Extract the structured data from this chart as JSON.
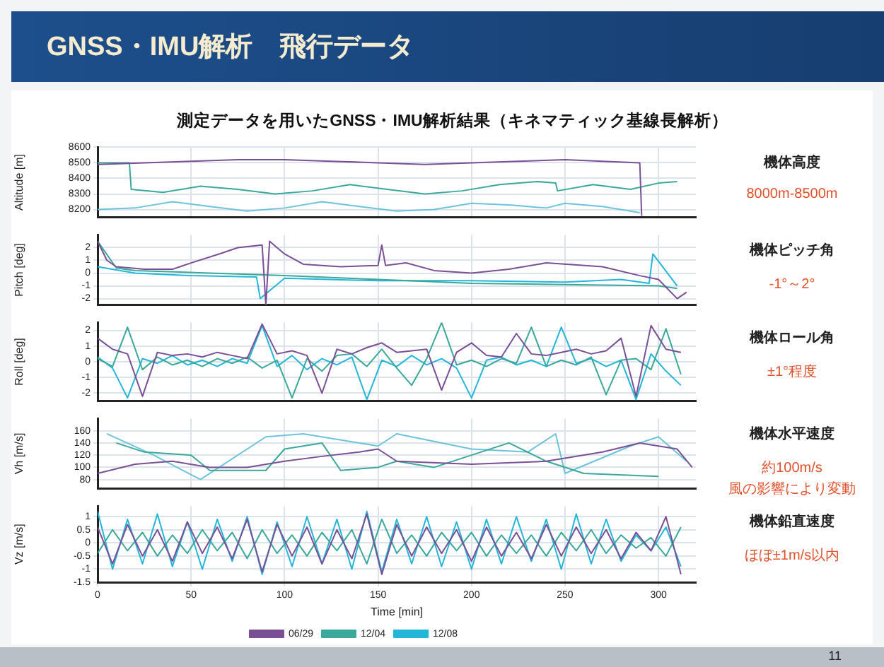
{
  "chart_data": [
    {
      "type": "line",
      "title": "GNSS・IMU解析　飛行データ",
      "subtitle": "測定データを用いたGNSS・IMU解析結果（キネマティック基線長解析）",
      "ylabel": "Altitude [m]",
      "xlim": [
        0,
        320
      ],
      "xticks": [
        0,
        50,
        100,
        150,
        200,
        250,
        300
      ],
      "ylim": [
        8150,
        8600
      ],
      "yticks": [
        8200,
        8300,
        8400,
        8500,
        8600
      ],
      "tick_labels": "y",
      "grid": true,
      "annotations": [
        "機体高度",
        "8000m-8500m"
      ],
      "series": [
        {
          "color": "#7a4f96",
          "x": [
            0,
            25,
            50,
            75,
            100,
            125,
            150,
            175,
            200,
            225,
            250,
            270,
            290,
            291
          ],
          "values": [
            8490,
            8500,
            8510,
            8520,
            8520,
            8510,
            8500,
            8490,
            8500,
            8510,
            8520,
            8510,
            8500,
            8160
          ]
        },
        {
          "color": "#3aa89a",
          "x": [
            0,
            17,
            18,
            35,
            55,
            75,
            95,
            115,
            135,
            155,
            175,
            195,
            215,
            235,
            245,
            246,
            265,
            285,
            300,
            310
          ],
          "values": [
            8500,
            8500,
            8330,
            8310,
            8350,
            8330,
            8300,
            8320,
            8360,
            8330,
            8300,
            8320,
            8360,
            8380,
            8370,
            8320,
            8360,
            8330,
            8370,
            8380
          ]
        },
        {
          "color": "#6cc3dc",
          "x": [
            0,
            20,
            40,
            60,
            80,
            100,
            120,
            140,
            160,
            180,
            200,
            220,
            240,
            250,
            270,
            290
          ],
          "values": [
            8200,
            8210,
            8250,
            8220,
            8190,
            8210,
            8250,
            8220,
            8190,
            8200,
            8240,
            8230,
            8210,
            8240,
            8220,
            8180
          ]
        }
      ]
    },
    {
      "type": "line",
      "ylabel": "Pitch [deg]",
      "xlim": [
        0,
        320
      ],
      "xticks": [
        0,
        50,
        100,
        150,
        200,
        250,
        300
      ],
      "ylim": [
        -2.5,
        3
      ],
      "yticks": [
        -2,
        -1,
        0,
        1,
        2
      ],
      "tick_labels": "y",
      "grid": true,
      "annotations": [
        "機体ピッチ角",
        "-1°～2°"
      ],
      "series": [
        {
          "color": "#7a4f96",
          "x": [
            0,
            5,
            10,
            25,
            40,
            50,
            65,
            75,
            88,
            90,
            92,
            100,
            110,
            130,
            150,
            152,
            154,
            165,
            180,
            200,
            220,
            240,
            270,
            290,
            300,
            310,
            315
          ],
          "values": [
            2.5,
            1,
            0.5,
            0.3,
            0.3,
            0.8,
            1.5,
            2,
            2.2,
            -2.5,
            2.5,
            1.5,
            0.7,
            0.5,
            0.6,
            2.2,
            0.6,
            0.8,
            0.2,
            0,
            0.3,
            0.8,
            0.5,
            -0.2,
            -0.5,
            -2,
            -1.5
          ]
        },
        {
          "color": "#3aa89a",
          "x": [
            0,
            10,
            20,
            60,
            100,
            150,
            200,
            250,
            300,
            310
          ],
          "values": [
            2.5,
            0.4,
            0.2,
            0,
            -0.2,
            -0.5,
            -0.8,
            -0.9,
            -1,
            -1.2
          ]
        },
        {
          "color": "#22b6d8",
          "x": [
            0,
            20,
            50,
            85,
            87,
            100,
            150,
            200,
            250,
            280,
            295,
            297,
            310
          ],
          "values": [
            0.5,
            0,
            -0.2,
            -0.3,
            -2,
            -0.4,
            -0.6,
            -0.6,
            -0.7,
            -0.5,
            -0.8,
            1.5,
            -1
          ]
        }
      ]
    },
    {
      "type": "line",
      "ylabel": "Roll [deg]",
      "x": [
        0,
        8,
        16,
        24,
        32,
        40,
        48,
        56,
        64,
        72,
        80,
        88,
        96,
        104,
        112,
        120,
        128,
        136,
        144,
        152,
        160,
        168,
        176,
        184,
        192,
        200,
        208,
        216,
        224,
        232,
        240,
        248,
        256,
        264,
        272,
        280,
        288,
        296,
        304,
        312
      ],
      "xlim": [
        0,
        320
      ],
      "xticks": [
        0,
        50,
        100,
        150,
        200,
        250,
        300
      ],
      "ylim": [
        -2.5,
        2.5
      ],
      "yticks": [
        -2,
        -1,
        0,
        1,
        2
      ],
      "tick_labels": "y",
      "grid": true,
      "annotations": [
        "機体ロール角",
        "±1°程度"
      ],
      "series": [
        {
          "color": "#7a4f96",
          "values": [
            1.5,
            0.8,
            0.5,
            -2.2,
            0.6,
            0.4,
            0.5,
            0.3,
            0.6,
            0.4,
            0.2,
            2.4,
            0.5,
            0.7,
            0.4,
            -2,
            0.8,
            0.5,
            0.9,
            1.2,
            0.6,
            0.7,
            0.8,
            -1.8,
            0.6,
            1.2,
            0.4,
            0.3,
            1.8,
            0.5,
            0.4,
            0.6,
            0.8,
            0.5,
            0.7,
            1.5,
            -2.2,
            2.3,
            0.8,
            0.6
          ]
        },
        {
          "color": "#3aa89a",
          "values": [
            0.2,
            -0.3,
            2.2,
            -0.5,
            0.3,
            -0.2,
            0.1,
            -0.3,
            0.2,
            -0.1,
            0.3,
            -0.4,
            0.1,
            -2.3,
            0.2,
            -0.6,
            0.4,
            0.5,
            -0.3,
            0.8,
            -0.4,
            -1.5,
            0.2,
            2.5,
            -0.2,
            0.1,
            -0.3,
            0.2,
            -0.1,
            2.2,
            -0.3,
            0.1,
            -0.2,
            0.3,
            -2.1,
            0.1,
            0.2,
            -0.5,
            2.1,
            -0.8
          ]
        },
        {
          "color": "#22b6d8",
          "values": [
            0.3,
            -0.4,
            -2.3,
            0.2,
            -0.1,
            0.4,
            -0.2,
            0.1,
            -0.3,
            0.2,
            -0.1,
            2.3,
            -0.3,
            0.4,
            -0.5,
            0.2,
            -0.2,
            0.3,
            -2.4,
            0.1,
            -0.3,
            0.4,
            -0.2,
            0.2,
            -0.4,
            -2.3,
            0.1,
            0.3,
            -0.2,
            0.1,
            -0.3,
            2.2,
            -0.1,
            0.2,
            -0.3,
            0.1,
            -2.4,
            0.5,
            -0.6,
            -1.5
          ]
        }
      ]
    },
    {
      "type": "line",
      "ylabel": "Vh [m/s]",
      "xlim": [
        0,
        320
      ],
      "xticks": [
        0,
        50,
        100,
        150,
        200,
        250,
        300
      ],
      "ylim": [
        65,
        180
      ],
      "yticks": [
        80,
        100,
        120,
        140,
        160
      ],
      "tick_labels": "y",
      "grid": true,
      "annotations": [
        "機体水平速度",
        "約100m/s",
        "風の影響により変動"
      ],
      "series": [
        {
          "color": "#7a4f96",
          "x": [
            0,
            20,
            40,
            60,
            80,
            100,
            120,
            140,
            150,
            160,
            200,
            240,
            270,
            290,
            310,
            318
          ],
          "values": [
            90,
            105,
            110,
            100,
            100,
            110,
            118,
            125,
            130,
            110,
            105,
            110,
            125,
            140,
            130,
            100
          ]
        },
        {
          "color": "#3aa89a",
          "x": [
            10,
            25,
            50,
            60,
            90,
            100,
            120,
            130,
            150,
            160,
            180,
            220,
            240,
            260,
            300
          ],
          "values": [
            140,
            125,
            120,
            95,
            95,
            130,
            140,
            95,
            100,
            110,
            100,
            140,
            110,
            90,
            85
          ]
        },
        {
          "color": "#6cc3dc",
          "x": [
            5,
            30,
            55,
            90,
            110,
            150,
            160,
            200,
            230,
            245,
            250,
            285,
            300,
            315
          ],
          "values": [
            155,
            120,
            80,
            150,
            155,
            135,
            155,
            130,
            125,
            155,
            90,
            135,
            150,
            110
          ]
        }
      ]
    },
    {
      "type": "line",
      "xlabel": "Time [min]",
      "ylabel": "Vz [m/s]",
      "legend": "bottom",
      "x": [
        0,
        8,
        16,
        24,
        32,
        40,
        48,
        56,
        64,
        72,
        80,
        88,
        96,
        104,
        112,
        120,
        128,
        136,
        144,
        152,
        160,
        168,
        176,
        184,
        192,
        200,
        208,
        216,
        224,
        232,
        240,
        248,
        256,
        264,
        272,
        280,
        288,
        296,
        304,
        312
      ],
      "xlim": [
        0,
        320
      ],
      "xticks": [
        0,
        50,
        100,
        150,
        200,
        250,
        300
      ],
      "ylim": [
        -1.5,
        1.4
      ],
      "yticks": [
        -1.5,
        -1,
        -0.5,
        0,
        0.5,
        1
      ],
      "grid": true,
      "annotations": [
        "機体鉛直速度",
        "ほぼ±1m/s以内",
        "11"
      ],
      "series": [
        {
          "name": "06/29",
          "color": "#7a4f96",
          "values": [
            0.6,
            -0.8,
            0.7,
            -0.5,
            0.5,
            -0.7,
            0.8,
            -0.4,
            0.6,
            -0.6,
            0.9,
            -1.1,
            0.7,
            -0.5,
            0.6,
            -0.8,
            0.5,
            -0.6,
            1.1,
            -1.2,
            0.7,
            -0.5,
            0.6,
            -0.4,
            0.5,
            -0.7,
            0.6,
            -0.5,
            0.4,
            -0.6,
            0.7,
            -0.5,
            0.6,
            -0.4,
            0.5,
            -0.6,
            0.4,
            -0.3,
            1.0,
            -1.2
          ]
        },
        {
          "name": "12/04",
          "color": "#3aa89a",
          "values": [
            -0.4,
            0.5,
            -0.3,
            0.4,
            -0.5,
            0.3,
            -0.4,
            0.5,
            -0.3,
            0.4,
            -0.6,
            0.5,
            -0.4,
            0.3,
            -0.5,
            0.4,
            -0.3,
            0.5,
            -0.8,
            0.9,
            -0.4,
            0.3,
            -0.5,
            0.4,
            -0.3,
            0.4,
            -0.5,
            0.3,
            -0.4,
            0.3,
            -0.5,
            0.4,
            -0.3,
            0.5,
            -0.4,
            0.3,
            -0.2,
            0.2,
            -0.5,
            0.6
          ]
        },
        {
          "name": "12/08",
          "color": "#22b6d8",
          "values": [
            1.2,
            -1.0,
            0.9,
            -0.8,
            1.1,
            -0.9,
            0.8,
            -1.0,
            0.9,
            -0.7,
            1.0,
            -1.2,
            0.8,
            -0.9,
            1.0,
            -0.8,
            0.9,
            -1.0,
            1.2,
            -1.1,
            0.9,
            -0.8,
            1.0,
            -0.9,
            0.8,
            -1.0,
            0.9,
            -0.8,
            1.0,
            -0.7,
            0.9,
            -1.0,
            1.1,
            -0.8,
            0.9,
            -0.7,
            0.3,
            -0.3,
            0.6,
            -0.9
          ]
        }
      ]
    }
  ]
}
